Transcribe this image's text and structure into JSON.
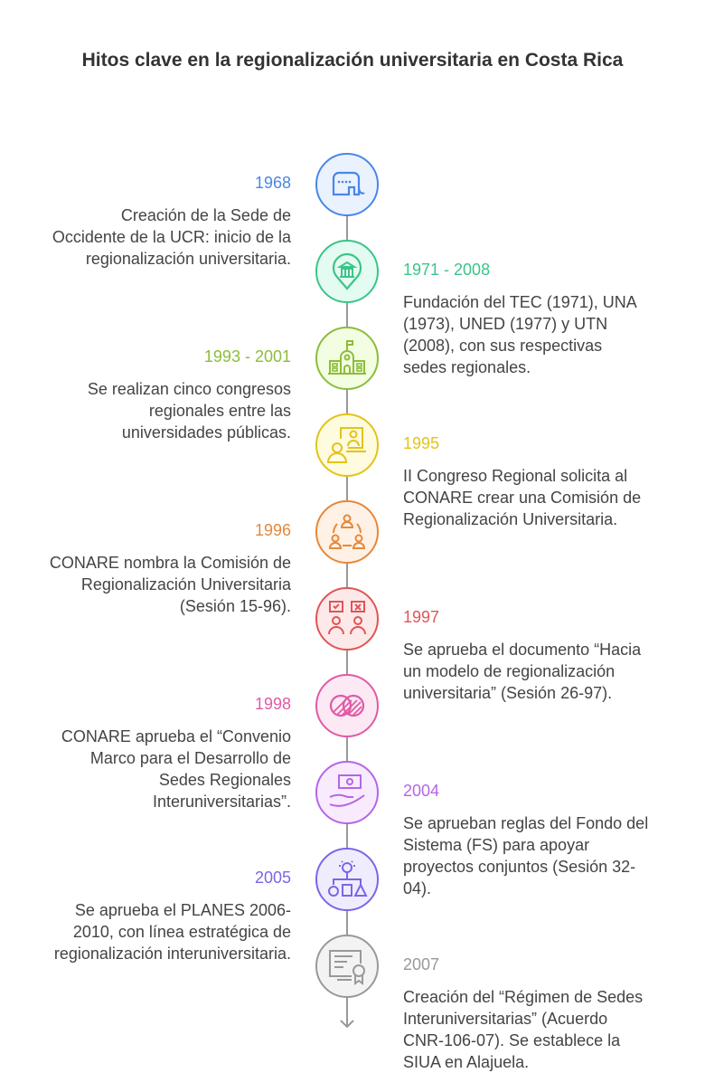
{
  "title": "Hitos clave en la regionalización universitaria en Costa Rica",
  "milestones": [
    {
      "year": "1968",
      "color": "#4a86e8",
      "fill": "#eaf2fe",
      "side": "left",
      "icon": "elephant-icon",
      "lines": [
        "Creación de la Sede de",
        "Occidente de la UCR: inicio de la",
        "regionalización universitaria."
      ]
    },
    {
      "year": "1971 - 2008",
      "color": "#3cc488",
      "fill": "#e4fbf1",
      "side": "right",
      "icon": "bank-location-pin-icon",
      "lines": [
        "Fundación del TEC (1971), UNA",
        "(1973), UNED (1977) y UTN",
        "(2008), con sus respectivas",
        "sedes regionales."
      ]
    },
    {
      "year": "1993 - 2001",
      "color": "#8cbd3a",
      "fill": "#f3fde2",
      "side": "left",
      "icon": "school-building-icon",
      "lines": [
        "Se realizan cinco congresos",
        "regionales entre las",
        "universidades públicas."
      ]
    },
    {
      "year": "1995",
      "color": "#e2c418",
      "fill": "#fffbdf",
      "side": "right",
      "icon": "video-conference-icon",
      "lines": [
        "II Congreso Regional solicita al",
        "CONARE crear una Comisión de",
        "Regionalización Universitaria."
      ]
    },
    {
      "year": "1996",
      "color": "#e6883a",
      "fill": "#fff1e5",
      "side": "left",
      "icon": "team-meeting-icon",
      "lines": [
        "CONARE nombra la Comisión de",
        "Regionalización Universitaria",
        "(Sesión 15-96)."
      ]
    },
    {
      "year": "1997",
      "color": "#e05555",
      "fill": "#fde9e9",
      "side": "right",
      "icon": "approval-vote-icon",
      "lines": [
        "Se aprueba el documento “Hacia",
        "un modelo de regionalización",
        "universitaria” (Sesión 26-97)."
      ]
    },
    {
      "year": "1998",
      "color": "#e05aa6",
      "fill": "#fde9f4",
      "side": "left",
      "icon": "overlapping-circles-icon",
      "lines": [
        "CONARE aprueba el “Convenio",
        "Marco para el Desarrollo de",
        "Sedes Regionales",
        "Interuniversitarias”."
      ]
    },
    {
      "year": "2004",
      "color": "#b565e6",
      "fill": "#f7ebfd",
      "side": "right",
      "icon": "hand-money-icon",
      "lines": [
        "Se aprueban reglas del Fondo del",
        "Sistema (FS) para apoyar",
        "proyectos conjuntos (Sesión 32-",
        "04)."
      ]
    },
    {
      "year": "2005",
      "color": "#7a66e8",
      "fill": "#efedfd",
      "side": "left",
      "icon": "strategy-lightbulb-icon",
      "lines": [
        "Se aprueba el PLANES 2006-",
        "2010, con línea estratégica de",
        "regionalización interuniversitaria."
      ]
    },
    {
      "year": "2007",
      "color": "#999999",
      "fill": "#f3f3f3",
      "side": "right",
      "icon": "certificate-icon",
      "lines": [
        "Creación del “Régimen de Sedes",
        "Interuniversitarias” (Acuerdo",
        "CNR-106-07). Se establece la",
        "SIUA en Alajuela."
      ]
    }
  ]
}
